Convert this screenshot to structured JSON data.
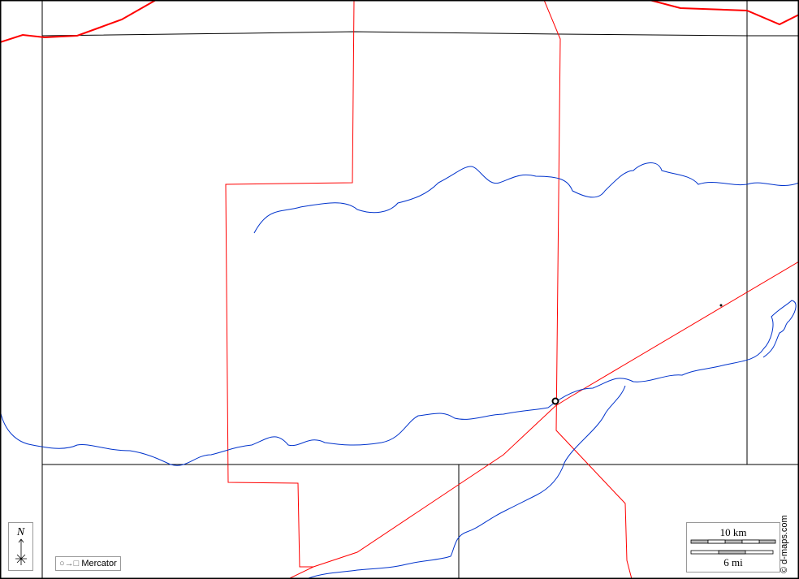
{
  "map": {
    "projection_label": "Mercator",
    "north_label": "N",
    "scale": {
      "km_label": "10 km",
      "mi_label": "6 mi"
    },
    "credit": "© d-maps.com",
    "colors": {
      "boundary": "#ff0000",
      "river": "#0033cc",
      "grid": "#000000"
    },
    "icons": [
      "north-arrow-icon",
      "projection-icon",
      "city-marker-icon"
    ]
  }
}
